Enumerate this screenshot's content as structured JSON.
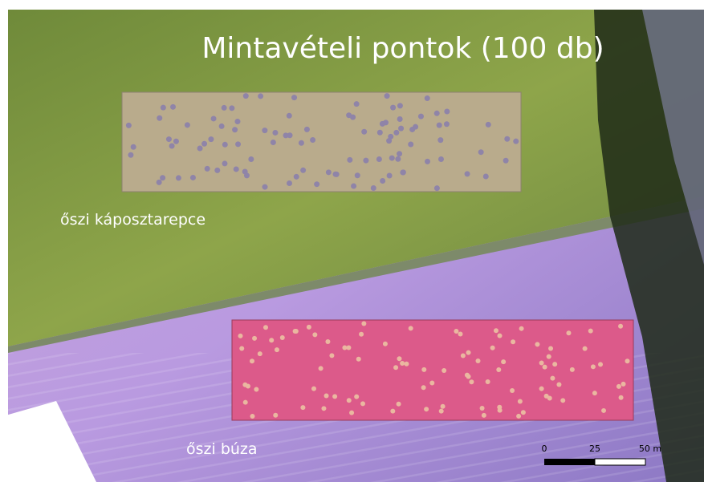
{
  "title": "Mintavételi pontok (100 db)",
  "field_labels": [
    "őszi káposztarepce",
    "őszi búza"
  ],
  "scale_bar": {
    "labels": [
      "0",
      "25",
      "50 m"
    ]
  }
}
